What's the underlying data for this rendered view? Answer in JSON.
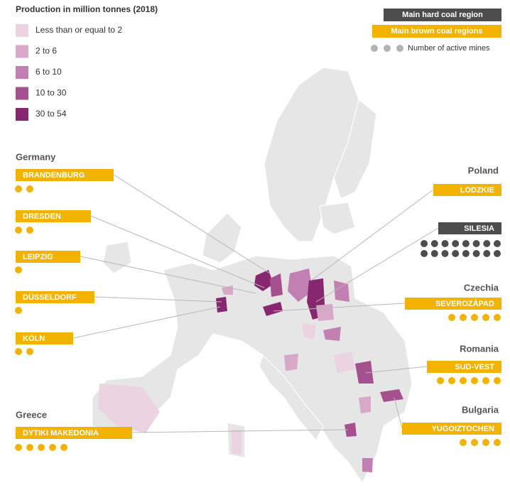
{
  "legend": {
    "title": "Production in million tonnes (2018)",
    "items": [
      {
        "label": "Less than or equal to 2",
        "color": "#ecd3e2"
      },
      {
        "label": "2 to 6",
        "color": "#d7a8c8"
      },
      {
        "label": "6 to 10",
        "color": "#c27fb2"
      },
      {
        "label": "10 to 30",
        "color": "#a5518f"
      },
      {
        "label": "30 to 54",
        "color": "#86276f"
      }
    ]
  },
  "key": {
    "hard_coal": {
      "label": "Main hard coal region",
      "color": "#4d4d4d"
    },
    "brown_coal": {
      "label": "Main brown coal regions",
      "color": "#f2b200"
    },
    "mines": {
      "label": "Number of active mines",
      "color": "#b3b3b3"
    }
  },
  "countries": [
    {
      "name": "Germany",
      "regions": [
        {
          "name": "BRANDENBURG",
          "type": "brown_coal",
          "mines": 2
        },
        {
          "name": "DRESDEN",
          "type": "brown_coal",
          "mines": 2
        },
        {
          "name": "LEIPZIG",
          "type": "brown_coal",
          "mines": 1
        },
        {
          "name": "DÜSSELDORF",
          "type": "brown_coal",
          "mines": 1
        },
        {
          "name": "KÖLN",
          "type": "brown_coal",
          "mines": 2
        }
      ]
    },
    {
      "name": "Poland",
      "regions": [
        {
          "name": "LODZKIE",
          "type": "brown_coal"
        },
        {
          "name": "SILESIA",
          "type": "hard_coal",
          "mines": 16
        }
      ]
    },
    {
      "name": "Czechia",
      "regions": [
        {
          "name": "SEVEROZÁPAD",
          "type": "brown_coal",
          "mines": 5
        }
      ]
    },
    {
      "name": "Romania",
      "regions": [
        {
          "name": "SUD-VEST",
          "type": "brown_coal",
          "mines": 6
        }
      ]
    },
    {
      "name": "Bulgaria",
      "regions": [
        {
          "name": "YUGOIZTOCHEN",
          "type": "brown_coal",
          "mines": 4
        }
      ]
    },
    {
      "name": "Greece",
      "regions": [
        {
          "name": "DYTIKI MAKEDONIA",
          "type": "brown_coal",
          "mines": 5
        }
      ]
    }
  ]
}
